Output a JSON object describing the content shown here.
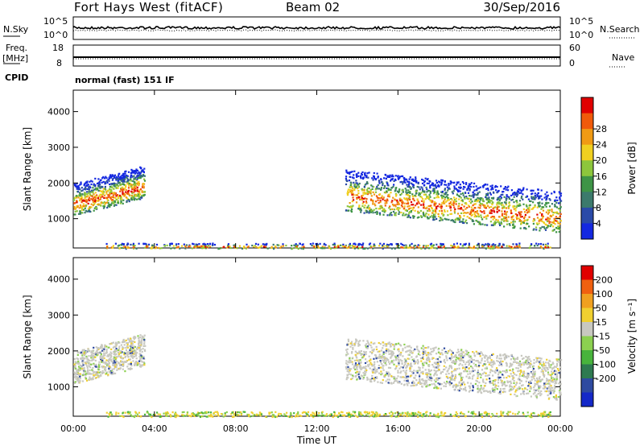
{
  "header": {
    "title": "Fort Hays West (fitACF)",
    "beam": "Beam 02",
    "date": "30/Sep/2016"
  },
  "panels": {
    "nsky_label": "N.Sky",
    "nsearch_label": "N.Search",
    "noise_top": "10^5",
    "noise_bottom": "10^0",
    "freq_label_1": "Freq.",
    "freq_label_2": "[MHz]",
    "freq_top": "18",
    "freq_bottom": "8",
    "nave_label": "Nave",
    "nave_top": "60",
    "nave_bottom": "0",
    "cpid_label": "CPID",
    "cpid_value": "normal (fast) 151 IF"
  },
  "chart_data": [
    {
      "type": "heatmap",
      "name": "power",
      "ylabel": "Slant Range [km]",
      "ylim": [
        180,
        4600
      ],
      "yticks": [
        "1000",
        "2000",
        "3000",
        "4000"
      ],
      "xlabel": "Time UT",
      "xticks": [
        "00:00",
        "04:00",
        "08:00",
        "12:00",
        "16:00",
        "20:00",
        "00:00"
      ],
      "colorbar_label": "Power [dB]",
      "colorbar_ticks": [
        "4",
        "8",
        "12",
        "16",
        "20",
        "24",
        "28"
      ],
      "colorbar_colors": [
        "#1428e0",
        "#2a4aa8",
        "#3c7a6c",
        "#3e9446",
        "#8dc63c",
        "#f0d020",
        "#f09a14",
        "#f05a0a",
        "#e00000"
      ]
    },
    {
      "type": "heatmap",
      "name": "velocity",
      "ylabel": "Slant Range [km]",
      "ylim": [
        180,
        4600
      ],
      "yticks": [
        "1000",
        "2000",
        "3000",
        "4000"
      ],
      "xlabel": "Time UT",
      "xticks": [
        "00:00",
        "04:00",
        "08:00",
        "12:00",
        "16:00",
        "20:00",
        "00:00"
      ],
      "colorbar_label": "Velocity [m s⁻¹]",
      "colorbar_ticks": [
        "200",
        "100",
        "50",
        "15",
        "-15",
        "-50",
        "-100",
        "-200"
      ],
      "colorbar_colors": [
        "#1428c8",
        "#2e4aa0",
        "#2e7a50",
        "#48b43c",
        "#8cd050",
        "#c8c8c0",
        "#f0d030",
        "#f0a020",
        "#f06010",
        "#e00000"
      ]
    }
  ]
}
